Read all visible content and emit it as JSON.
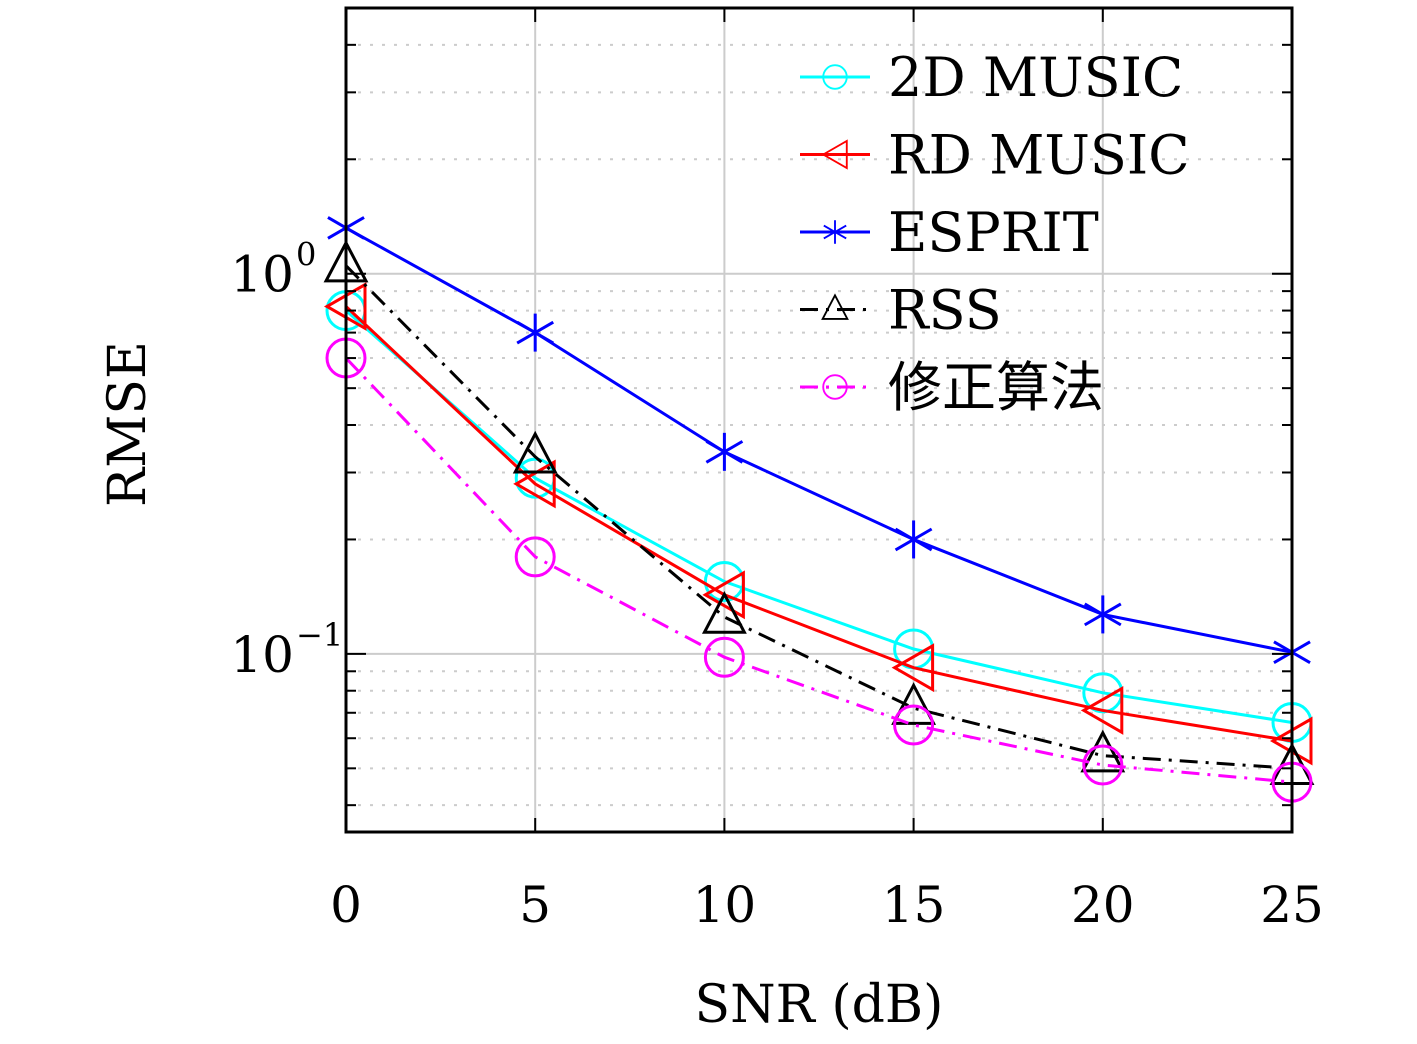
{
  "chart_data": {
    "type": "line",
    "title": "",
    "xlabel": "SNR (dB)",
    "ylabel": "RMSE",
    "x": [
      0,
      5,
      10,
      15,
      20,
      25
    ],
    "xlim": [
      0,
      25
    ],
    "ylim": [
      0.034,
      5.0
    ],
    "yscale": "log",
    "xticks": [
      0,
      5,
      10,
      15,
      20,
      25
    ],
    "yticks": [
      {
        "value": 0.1,
        "base": "10",
        "exp": "−1"
      },
      {
        "value": 1,
        "base": "10",
        "exp": "0"
      }
    ],
    "grid": true,
    "legend_position": "top-right",
    "series": [
      {
        "name": "2D MUSIC",
        "color": "#00ffff",
        "marker": "circle",
        "linestyle": "solid",
        "values": [
          0.8,
          0.29,
          0.155,
          0.103,
          0.079,
          0.066
        ]
      },
      {
        "name": "RD MUSIC",
        "color": "#ff0000",
        "marker": "triangle-left",
        "linestyle": "solid",
        "values": [
          0.82,
          0.28,
          0.143,
          0.092,
          0.071,
          0.059
        ]
      },
      {
        "name": "ESPRIT",
        "color": "#0000ff",
        "marker": "asterisk",
        "linestyle": "solid",
        "values": [
          1.32,
          0.7,
          0.34,
          0.2,
          0.127,
          0.101
        ]
      },
      {
        "name": "RSS",
        "color": "#000000",
        "marker": "triangle-up",
        "linestyle": "dashdot",
        "values": [
          1.05,
          0.33,
          0.125,
          0.072,
          0.054,
          0.05
        ]
      },
      {
        "name": "修正算法",
        "color": "#ff00ff",
        "marker": "circle",
        "linestyle": "dashdot",
        "values": [
          0.6,
          0.18,
          0.098,
          0.065,
          0.051,
          0.046
        ]
      }
    ]
  }
}
